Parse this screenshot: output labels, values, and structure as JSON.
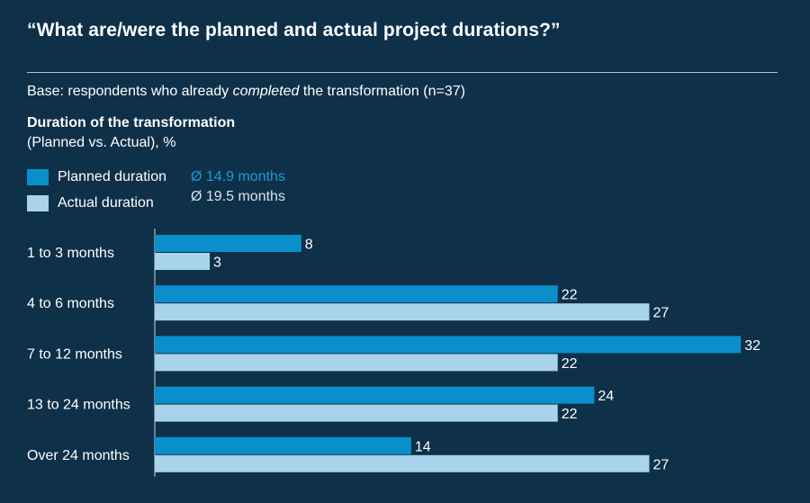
{
  "header": {
    "title": "“What are/were the planned and actual project durations?”",
    "base_prefix": "Base: respondents who already ",
    "base_emphasis": "completed",
    "base_suffix": " the transformation (n=37)",
    "subtitle": "Duration of the transformation",
    "subtitle2": "(Planned vs. Actual), %"
  },
  "legend": {
    "planned_label": "Planned duration",
    "actual_label": "Actual duration",
    "planned_avg": "Ø 14.9 months",
    "actual_avg": "Ø 19.5 months"
  },
  "colors": {
    "background": "#0e3049",
    "planned": "#0a8fca",
    "actual": "#a9d3ea",
    "planned_avg_text": "#1a9ad6",
    "actual_avg_text": "#d7e3ea"
  },
  "chart_data": {
    "type": "bar",
    "orientation": "horizontal",
    "categories": [
      "1 to 3 months",
      "4 to 6 months",
      "7 to 12 months",
      "13 to 24 months",
      "Over 24 months"
    ],
    "series": [
      {
        "name": "Planned duration",
        "values": [
          8,
          22,
          32,
          24,
          14
        ]
      },
      {
        "name": "Actual duration",
        "values": [
          3,
          27,
          22,
          22,
          27
        ]
      }
    ],
    "xlim": [
      0,
      32
    ],
    "grid": false,
    "legend_position": "top-left"
  }
}
